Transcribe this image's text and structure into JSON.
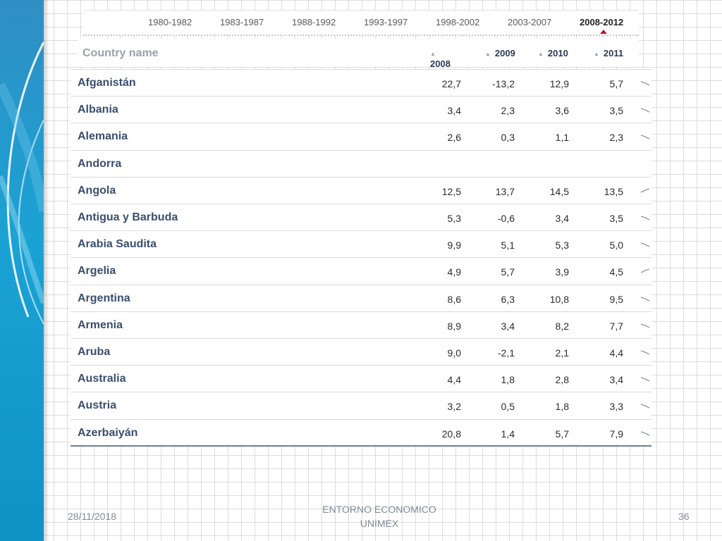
{
  "period_tabs": [
    {
      "label": "1980-1982",
      "active": false
    },
    {
      "label": "1983-1987",
      "active": false
    },
    {
      "label": "1988-1992",
      "active": false
    },
    {
      "label": "1993-1997",
      "active": false
    },
    {
      "label": "1998-2002",
      "active": false
    },
    {
      "label": "2003-2007",
      "active": false
    },
    {
      "label": "2008-2012",
      "active": true
    }
  ],
  "table": {
    "country_header": "Country name",
    "year_headers": [
      "2008",
      "2009",
      "2010",
      "2011"
    ],
    "rows": [
      {
        "name": "Afganistán",
        "values": [
          "22,7",
          "-13,2",
          "12,9",
          "5,7"
        ],
        "trend": "down"
      },
      {
        "name": "Albania",
        "values": [
          "3,4",
          "2,3",
          "3,6",
          "3,5"
        ],
        "trend": "down"
      },
      {
        "name": "Alemania",
        "values": [
          "2,6",
          "0,3",
          "1,1",
          "2,3"
        ],
        "trend": "down"
      },
      {
        "name": "Andorra",
        "values": [
          "",
          "",
          "",
          ""
        ],
        "trend": "none"
      },
      {
        "name": "Angola",
        "values": [
          "12,5",
          "13,7",
          "14,5",
          "13,5"
        ],
        "trend": "up"
      },
      {
        "name": "Antigua y Barbuda",
        "values": [
          "5,3",
          "-0,6",
          "3,4",
          "3,5"
        ],
        "trend": "down"
      },
      {
        "name": "Arabia Saudita",
        "values": [
          "9,9",
          "5,1",
          "5,3",
          "5,0"
        ],
        "trend": "down"
      },
      {
        "name": "Argelia",
        "values": [
          "4,9",
          "5,7",
          "3,9",
          "4,5"
        ],
        "trend": "up"
      },
      {
        "name": "Argentina",
        "values": [
          "8,6",
          "6,3",
          "10,8",
          "9,5"
        ],
        "trend": "down"
      },
      {
        "name": "Armenia",
        "values": [
          "8,9",
          "3,4",
          "8,2",
          "7,7"
        ],
        "trend": "down"
      },
      {
        "name": "Aruba",
        "values": [
          "9,0",
          "-2,1",
          "2,1",
          "4,4"
        ],
        "trend": "down"
      },
      {
        "name": "Australia",
        "values": [
          "4,4",
          "1,8",
          "2,8",
          "3,4"
        ],
        "trend": "down"
      },
      {
        "name": "Austria",
        "values": [
          "3,2",
          "0,5",
          "1,8",
          "3,3"
        ],
        "trend": "down"
      },
      {
        "name": "Azerbaiyán",
        "values": [
          "20,8",
          "1,4",
          "5,7",
          "7,9"
        ],
        "trend": "down"
      }
    ]
  },
  "footer": {
    "date": "28/11/2018",
    "title_line1": "ENTORNO ECONOMICO",
    "title_line2": "UNIMEX",
    "page_number": "36"
  },
  "colors": {
    "accent_band": "#1ba2d4",
    "active_marker": "#b81c2c",
    "country_text": "#3a4e6e"
  }
}
